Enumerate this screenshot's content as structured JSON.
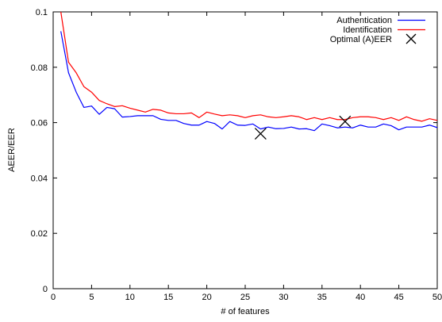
{
  "chart_data": {
    "type": "line",
    "title": "",
    "xlabel": "# of features",
    "ylabel": "AEER/EER",
    "xlim": [
      0,
      50
    ],
    "ylim": [
      0,
      0.1
    ],
    "xticks": [
      0,
      5,
      10,
      15,
      20,
      25,
      30,
      35,
      40,
      45,
      50
    ],
    "xtick_labels": [
      "0",
      "5",
      "10",
      "15",
      "20",
      "25",
      "30",
      "35",
      "40",
      "45",
      "50"
    ],
    "yticks": [
      0,
      0.02,
      0.04,
      0.06,
      0.08,
      0.1
    ],
    "ytick_labels": [
      "0",
      "0.02",
      "0.04",
      "0.06",
      "0.08",
      "0.1"
    ],
    "grid": false,
    "legend_position": "top-right",
    "x": [
      1,
      2,
      3,
      4,
      5,
      6,
      7,
      8,
      9,
      10,
      11,
      12,
      13,
      14,
      15,
      16,
      17,
      18,
      19,
      20,
      21,
      22,
      23,
      24,
      25,
      26,
      27,
      28,
      29,
      30,
      31,
      32,
      33,
      34,
      35,
      36,
      37,
      38,
      39,
      40,
      41,
      42,
      43,
      44,
      45,
      46,
      47,
      48,
      49,
      50
    ],
    "series": [
      {
        "name": "Authentication",
        "color": "#0000ff",
        "values": [
          0.093,
          0.078,
          0.071,
          0.0655,
          0.066,
          0.063,
          0.0655,
          0.065,
          0.062,
          0.0622,
          0.0625,
          0.0625,
          0.0625,
          0.0612,
          0.0608,
          0.0608,
          0.0597,
          0.0591,
          0.0591,
          0.0604,
          0.0597,
          0.0577,
          0.0604,
          0.0591,
          0.059,
          0.0595,
          0.0577,
          0.0584,
          0.0578,
          0.0579,
          0.0584,
          0.0577,
          0.0578,
          0.0571,
          0.0595,
          0.0589,
          0.0581,
          0.0584,
          0.0581,
          0.0591,
          0.0584,
          0.0584,
          0.0595,
          0.0589,
          0.0574,
          0.0584,
          0.0584,
          0.0584,
          0.0591,
          0.0582
        ]
      },
      {
        "name": "Identification",
        "color": "#ff0000",
        "values": [
          0.1,
          0.0818,
          0.078,
          0.073,
          0.071,
          0.068,
          0.0668,
          0.0658,
          0.0661,
          0.0652,
          0.0645,
          0.0638,
          0.0648,
          0.0645,
          0.0635,
          0.0632,
          0.0632,
          0.0635,
          0.0618,
          0.0638,
          0.0631,
          0.0625,
          0.0628,
          0.0625,
          0.0618,
          0.0625,
          0.0628,
          0.0621,
          0.0618,
          0.0621,
          0.0625,
          0.0621,
          0.0611,
          0.0618,
          0.0611,
          0.0618,
          0.0611,
          0.0611,
          0.0618,
          0.0621,
          0.0621,
          0.0618,
          0.0611,
          0.0618,
          0.0608,
          0.0621,
          0.0611,
          0.0605,
          0.0614,
          0.0608
        ]
      }
    ],
    "markers": {
      "name": "Optimal (A)EER",
      "symbol": "x",
      "color": "#000000",
      "points": [
        [
          27,
          0.056
        ],
        [
          38,
          0.0604
        ]
      ]
    }
  }
}
